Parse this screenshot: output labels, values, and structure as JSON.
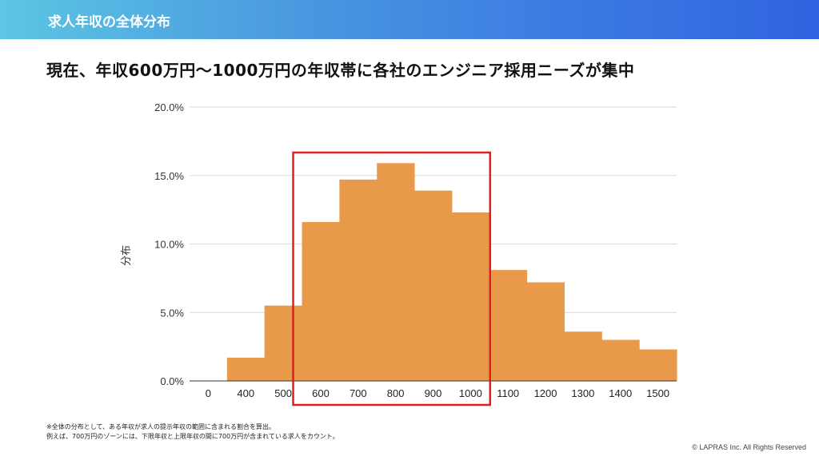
{
  "header": {
    "title": "求人年収の全体分布"
  },
  "subtitle": "現在、年収600万円〜1000万円の年収帯に各社のエンジニア採用ニーズが集中",
  "notes": [
    "※全体の分布として、ある年収が求人の提示年収の範囲に含まれる割合を算出。",
    "例えば、700万円のゾーンには、下限年収と上限年収の間に700万円が含まれている求人をカウント。"
  ],
  "copyright": "© LAPRAS Inc. All Rights Reserved",
  "colors": {
    "bar": "#e8994a",
    "highlight": "#e02020",
    "grid": "#d9d9d9"
  },
  "chart_data": {
    "type": "bar",
    "title": "",
    "xlabel": "",
    "ylabel": "分布",
    "categories": [
      "0",
      "400",
      "500",
      "600",
      "700",
      "800",
      "900",
      "1000",
      "1100",
      "1200",
      "1300",
      "1400",
      "1500"
    ],
    "values": [
      0,
      1.7,
      5.5,
      11.6,
      14.7,
      15.9,
      13.9,
      12.3,
      8.1,
      7.2,
      3.6,
      3.0,
      2.3
    ],
    "ylim": [
      0,
      20
    ],
    "yticks": [
      "0.0%",
      "5.0%",
      "10.0%",
      "15.0%",
      "20.0%"
    ],
    "grid": true,
    "highlight_range": [
      "600",
      "1000"
    ]
  }
}
